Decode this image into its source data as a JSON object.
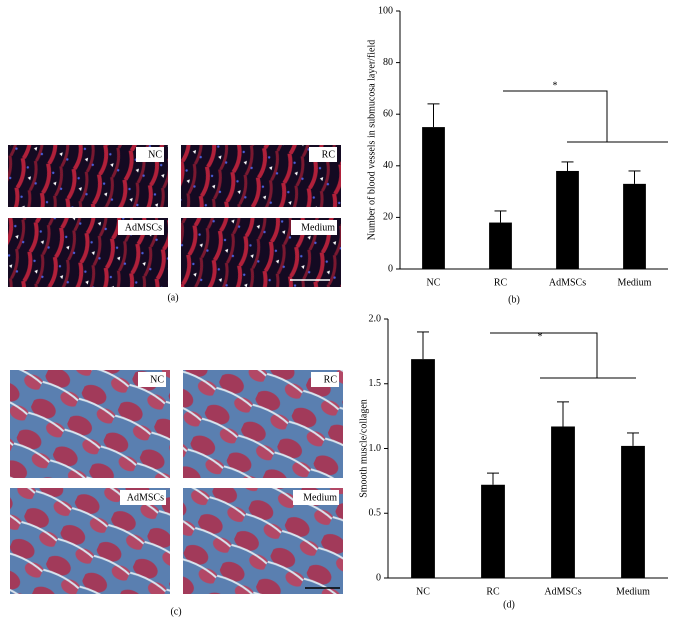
{
  "panels": [
    {
      "label": "(a)",
      "images": [
        "NC",
        "RC",
        "AdMSCs",
        "Medium"
      ]
    },
    {
      "label": "(c)",
      "images": [
        "NC",
        "RC",
        "AdMSCs",
        "Medium"
      ]
    }
  ],
  "chart_data": [
    {
      "type": "bar",
      "panel_label": "(b)",
      "y_label": "Number of blood vessels in submucosa layer/field",
      "categories": [
        "NC",
        "RC",
        "AdMSCs",
        "Medium"
      ],
      "values": [
        55,
        18,
        38,
        33
      ],
      "errors": [
        9,
        4.5,
        3.5,
        5
      ],
      "color": "#000000",
      "ylim": [
        0,
        100
      ],
      "yticks": [
        0,
        20,
        40,
        60,
        80,
        100
      ],
      "annotation": "*"
    },
    {
      "type": "bar",
      "panel_label": "(d)",
      "y_label": "Smooth muscle/collagen",
      "categories": [
        "NC",
        "RC",
        "AdMSCs",
        "Medium"
      ],
      "values": [
        1.69,
        0.72,
        1.17,
        1.02
      ],
      "errors": [
        0.21,
        0.09,
        0.19,
        0.1
      ],
      "color": "#000000",
      "ylim": [
        0,
        2
      ],
      "yticks": [
        0,
        0.5,
        {
          "value": 1,
          "label": "1.0"
        },
        1.5,
        {
          "value": 2,
          "label": "2.0"
        }
      ],
      "annotation": "*"
    }
  ]
}
